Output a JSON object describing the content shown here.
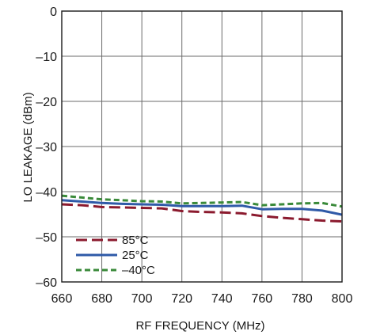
{
  "chart_data": {
    "type": "line",
    "title": "",
    "xlabel": "RF FREQUENCY (MHz)",
    "ylabel": "LO LEAKAGE (dBm)",
    "xlim": [
      660,
      800
    ],
    "ylim": [
      -60,
      0
    ],
    "xticks": [
      "660",
      "680",
      "700",
      "720",
      "740",
      "760",
      "780",
      "800"
    ],
    "yticks": [
      "0",
      "–10",
      "–20",
      "–30",
      "–40",
      "–50",
      "–60"
    ],
    "grid": true,
    "legend_position": "bottom-left",
    "series": [
      {
        "name": "85°C",
        "color": "#8b1a2e",
        "dash": "long-dash",
        "x": [
          660,
          670,
          680,
          690,
          700,
          710,
          720,
          730,
          740,
          750,
          760,
          770,
          780,
          790,
          800
        ],
        "y": [
          -42.8,
          -43.0,
          -43.4,
          -43.5,
          -43.6,
          -43.7,
          -44.3,
          -44.5,
          -44.6,
          -44.8,
          -45.4,
          -45.8,
          -46.1,
          -46.4,
          -46.6
        ]
      },
      {
        "name": "25°C",
        "color": "#2f5aa8",
        "dash": "solid",
        "x": [
          660,
          670,
          680,
          690,
          700,
          710,
          720,
          730,
          740,
          750,
          760,
          770,
          780,
          790,
          800
        ],
        "y": [
          -41.9,
          -42.2,
          -42.5,
          -42.7,
          -42.8,
          -42.9,
          -43.2,
          -43.2,
          -43.2,
          -43.1,
          -43.9,
          -43.8,
          -43.8,
          -44.2,
          -45.1
        ]
      },
      {
        "name": "–40°C",
        "color": "#3a8a3a",
        "dash": "short-dash",
        "x": [
          660,
          670,
          680,
          690,
          700,
          710,
          720,
          730,
          740,
          750,
          760,
          770,
          780,
          790,
          800
        ],
        "y": [
          -40.9,
          -41.3,
          -41.7,
          -41.9,
          -42.1,
          -42.2,
          -42.6,
          -42.5,
          -42.4,
          -42.3,
          -43.0,
          -42.8,
          -42.6,
          -42.5,
          -43.3
        ]
      }
    ]
  }
}
